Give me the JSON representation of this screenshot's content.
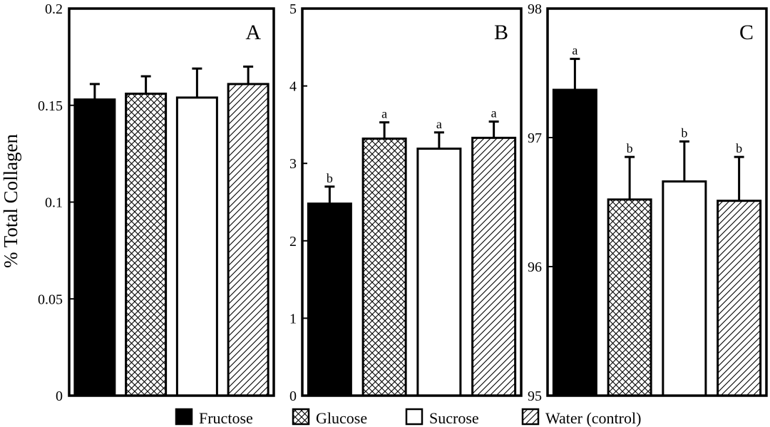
{
  "ylabel": "% Total Collagen",
  "legend": {
    "placement": "bottom",
    "items": [
      {
        "label": "Fructose",
        "pattern": "solid"
      },
      {
        "label": "Glucose",
        "pattern": "crosshatch"
      },
      {
        "label": "Sucrose",
        "pattern": "empty"
      },
      {
        "label": "Water (control)",
        "pattern": "diagonal"
      }
    ]
  },
  "colors": {
    "ink": "#000000",
    "background": "#ffffff"
  },
  "chart_data": [
    {
      "type": "bar",
      "panel": "A",
      "categories": [
        "Fructose",
        "Glucose",
        "Sucrose",
        "Water (control)"
      ],
      "values": [
        0.153,
        0.156,
        0.154,
        0.161
      ],
      "errors": [
        0.008,
        0.009,
        0.015,
        0.009
      ],
      "significance": [
        "",
        "",
        "",
        ""
      ],
      "ylim": [
        0,
        0.2
      ],
      "yticks": [
        0,
        0.05,
        0.1,
        0.15,
        0.2
      ],
      "yticklabels": [
        "0",
        "0.05",
        "0.1",
        "0.15",
        "0.2"
      ],
      "xlabel": "",
      "ylabel": "% Total Collagen",
      "grid": false
    },
    {
      "type": "bar",
      "panel": "B",
      "categories": [
        "Fructose",
        "Glucose",
        "Sucrose",
        "Water (control)"
      ],
      "values": [
        2.48,
        3.32,
        3.19,
        3.33
      ],
      "errors": [
        0.22,
        0.21,
        0.21,
        0.21
      ],
      "significance": [
        "b",
        "a",
        "a",
        "a"
      ],
      "ylim": [
        0,
        5
      ],
      "yticks": [
        0,
        1,
        2,
        3,
        4,
        5
      ],
      "yticklabels": [
        "0",
        "1",
        "2",
        "3",
        "4",
        "5"
      ],
      "xlabel": "",
      "ylabel": "",
      "grid": false
    },
    {
      "type": "bar",
      "panel": "C",
      "categories": [
        "Fructose",
        "Glucose",
        "Sucrose",
        "Water (control)"
      ],
      "values": [
        97.37,
        96.52,
        96.66,
        96.51
      ],
      "errors": [
        0.24,
        0.33,
        0.31,
        0.34
      ],
      "significance": [
        "a",
        "b",
        "b",
        "b"
      ],
      "ylim": [
        95,
        98
      ],
      "yticks": [
        95,
        96,
        97,
        98
      ],
      "yticklabels": [
        "95",
        "96",
        "97",
        "98"
      ],
      "xlabel": "",
      "ylabel": "",
      "grid": false
    }
  ]
}
